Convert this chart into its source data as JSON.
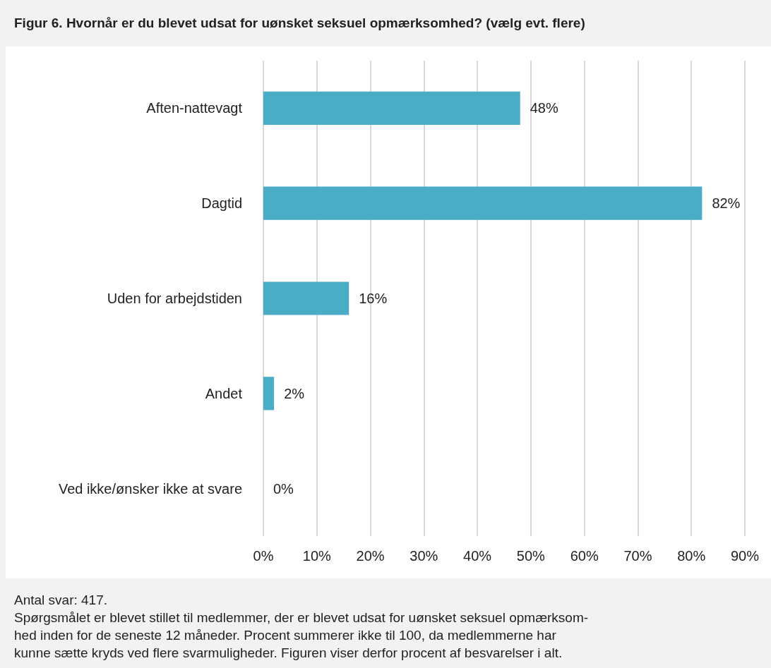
{
  "chart_data": {
    "type": "bar",
    "orientation": "horizontal",
    "title": "Figur 6. Hvornår er du blevet udsat for uønsket seksuel opmærksomhed? (vælg evt. flere)",
    "categories": [
      "Aften-nattevagt",
      "Dagtid",
      "Uden for arbejdstiden",
      "Andet",
      "Ved ikke/ønsker ikke at svare"
    ],
    "values": [
      48,
      82,
      16,
      2,
      0
    ],
    "value_labels": [
      "48%",
      "82%",
      "16%",
      "2%",
      "0%"
    ],
    "color": "#4bacc6",
    "xlim": [
      0,
      90
    ],
    "xticks": [
      {
        "value": 0,
        "label": "0%"
      },
      {
        "value": 10,
        "label": "10%"
      },
      {
        "value": 20,
        "label": "20%"
      },
      {
        "value": 30,
        "label": "30%"
      },
      {
        "value": 40,
        "label": "40%"
      },
      {
        "value": 50,
        "label": "50%"
      },
      {
        "value": 60,
        "label": "60%"
      },
      {
        "value": 70,
        "label": "70%"
      },
      {
        "value": 80,
        "label": "80%"
      },
      {
        "value": 90,
        "label": "90%"
      }
    ],
    "grid": "x",
    "annotations": [
      "Antal svar: 417.",
      "Spørgsmålet er blevet stillet til medlemmer, der er blevet udsat for uønsket seksuel opmærksom-\nhed inden for de seneste 12 måneder. Procent summerer ikke til 100, da medlemmerne har\nkunne sætte kryds ved flere svarmuligheder. Figuren viser derfor procent af besvarelser i alt."
    ]
  }
}
